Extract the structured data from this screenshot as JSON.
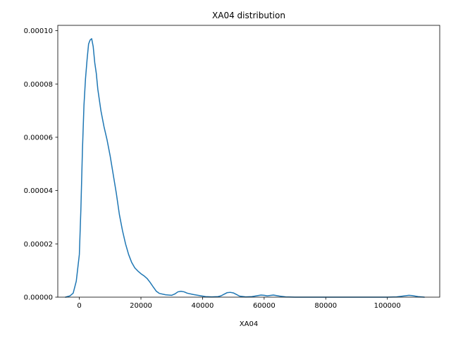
{
  "chart_data": {
    "type": "line",
    "title": "XA04 distribution",
    "xlabel": "XA04",
    "ylabel": "",
    "xlim": [
      -7000,
      117000
    ],
    "ylim": [
      0,
      0.000102
    ],
    "x_ticks": [
      0,
      20000,
      40000,
      60000,
      80000,
      100000
    ],
    "x_tick_labels": [
      "0",
      "20000",
      "40000",
      "60000",
      "80000",
      "100000"
    ],
    "y_ticks": [
      0,
      2e-05,
      4e-05,
      6e-05,
      8e-05,
      0.0001
    ],
    "y_tick_labels": [
      "0.00000",
      "0.00002",
      "0.00004",
      "0.00006",
      "0.00008",
      "0.00010"
    ],
    "grid": false,
    "line_color": "#1f77b4",
    "series": [
      {
        "points": [
          [
            -4500,
            0
          ],
          [
            -3000,
            5e-07
          ],
          [
            -2000,
            1.5e-06
          ],
          [
            -1000,
            6e-06
          ],
          [
            0,
            1.6e-05
          ],
          [
            500,
            3.3e-05
          ],
          [
            1000,
            5.5e-05
          ],
          [
            1500,
            7.2e-05
          ],
          [
            2000,
            8.2e-05
          ],
          [
            2500,
            8.9e-05
          ],
          [
            3000,
            9.5e-05
          ],
          [
            3500,
            9.65e-05
          ],
          [
            4000,
            9.7e-05
          ],
          [
            4500,
            9.4e-05
          ],
          [
            5000,
            8.8e-05
          ],
          [
            5500,
            8.4e-05
          ],
          [
            6000,
            7.8e-05
          ],
          [
            7000,
            7e-05
          ],
          [
            8000,
            6.4e-05
          ],
          [
            9000,
            5.9e-05
          ],
          [
            10000,
            5.3e-05
          ],
          [
            11000,
            4.6e-05
          ],
          [
            12000,
            3.9e-05
          ],
          [
            13000,
            3.1e-05
          ],
          [
            14000,
            2.5e-05
          ],
          [
            15000,
            2e-05
          ],
          [
            16000,
            1.6e-05
          ],
          [
            17000,
            1.3e-05
          ],
          [
            18000,
            1.1e-05
          ],
          [
            19000,
            9.8e-06
          ],
          [
            20000,
            8.8e-06
          ],
          [
            21000,
            8e-06
          ],
          [
            22000,
            7e-06
          ],
          [
            23000,
            5.5e-06
          ],
          [
            24000,
            3.8e-06
          ],
          [
            25000,
            2.2e-06
          ],
          [
            26000,
            1.4e-06
          ],
          [
            28000,
            9e-07
          ],
          [
            30000,
            7e-07
          ],
          [
            31000,
            1.2e-06
          ],
          [
            32000,
            2e-06
          ],
          [
            33000,
            2.2e-06
          ],
          [
            34000,
            2e-06
          ],
          [
            35000,
            1.5e-06
          ],
          [
            37000,
            1e-06
          ],
          [
            39000,
            6e-07
          ],
          [
            41000,
            2e-07
          ],
          [
            43000,
            1e-07
          ],
          [
            45000,
            2e-07
          ],
          [
            46000,
            5e-07
          ],
          [
            47000,
            1.1e-06
          ],
          [
            48000,
            1.7e-06
          ],
          [
            49000,
            1.8e-06
          ],
          [
            50000,
            1.6e-06
          ],
          [
            51000,
            1e-06
          ],
          [
            52000,
            4e-07
          ],
          [
            54000,
            1e-07
          ],
          [
            56000,
            2e-07
          ],
          [
            58000,
            6e-07
          ],
          [
            59000,
            8e-07
          ],
          [
            60000,
            7e-07
          ],
          [
            61000,
            5e-07
          ],
          [
            63000,
            8e-07
          ],
          [
            65000,
            4e-07
          ],
          [
            67000,
            1e-07
          ],
          [
            70000,
            0
          ],
          [
            80000,
            0
          ],
          [
            90000,
            0
          ],
          [
            100000,
            0
          ],
          [
            103000,
            1e-07
          ],
          [
            105000,
            4e-07
          ],
          [
            107000,
            7e-07
          ],
          [
            108000,
            6e-07
          ],
          [
            110000,
            2e-07
          ],
          [
            112000,
            0
          ]
        ]
      }
    ]
  }
}
